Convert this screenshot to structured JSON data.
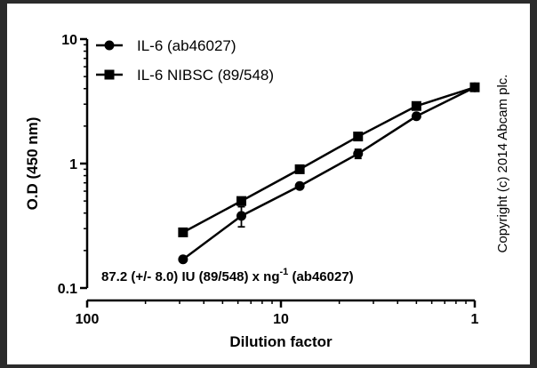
{
  "chart_data": {
    "type": "line",
    "xscale": "log",
    "yscale": "log",
    "x_reversed": true,
    "xlim": [
      100,
      1
    ],
    "ylim": [
      0.1,
      10
    ],
    "xlabel": "Dilution factor",
    "ylabel": "O.D (450 nm)",
    "xticks": [
      "100",
      "10",
      "1"
    ],
    "yticks": [
      "0.1",
      "1",
      "10"
    ],
    "legend_position": "top-left",
    "series": [
      {
        "name": "IL-6 (ab46027)",
        "marker": "circle",
        "x": [
          32,
          16,
          8,
          4,
          2,
          1
        ],
        "y": [
          0.17,
          0.38,
          0.66,
          1.2,
          2.4,
          4.1
        ],
        "err": [
          0,
          0.07,
          0,
          0.1,
          0,
          0
        ]
      },
      {
        "name": "IL-6 NIBSC (89/548)",
        "marker": "square",
        "x": [
          32,
          16,
          8,
          4,
          2,
          1
        ],
        "y": [
          0.28,
          0.5,
          0.9,
          1.65,
          2.9,
          4.1
        ],
        "err": [
          0,
          0,
          0,
          0,
          0,
          0
        ]
      }
    ],
    "annotation": {
      "prefix": "87.2 (+/- 8.0) IU (89/548) x ng",
      "sup": "-1",
      "suffix": " (ab46027)"
    },
    "copyright": "Copyright (c) 2014 Abcam plc."
  }
}
